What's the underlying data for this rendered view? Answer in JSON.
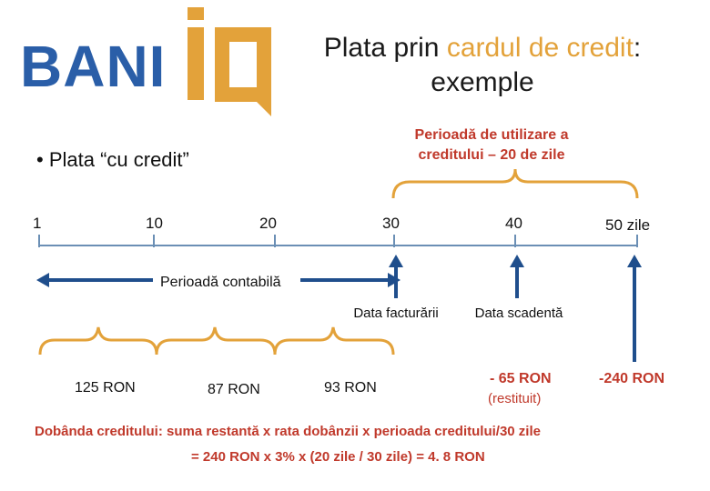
{
  "logo": {
    "text": "BANI",
    "accent_color": "#e3a23a",
    "brand_color": "#2a5ea8"
  },
  "title": {
    "part1": "Plata prin ",
    "highlight": "cardul de credit",
    "part2": ": exemple"
  },
  "bullet": "• Plata “cu credit”",
  "usage_period_label": "Perioadă de utilizare a creditului – 20 de zile",
  "timeline": {
    "ticks": [
      "1",
      "10",
      "20",
      "30",
      "40",
      "50 zile"
    ],
    "accounting_period_label": "Perioadă contabilă",
    "billing_date_label": "Data facturării",
    "due_date_label": "Data scadentă"
  },
  "amounts": [
    "125 RON",
    "87 RON",
    "93 RON"
  ],
  "payment": {
    "amount": "- 65 RON",
    "note": "(restituit)"
  },
  "remaining": "-240 RON",
  "formula": {
    "line1": "Dobânda creditului: suma restantă x rata dobânzii x perioada creditului/30 zile",
    "line2": "=  240 RON x 3% x (20 zile / 30 zile) = 4. 8 RON"
  }
}
